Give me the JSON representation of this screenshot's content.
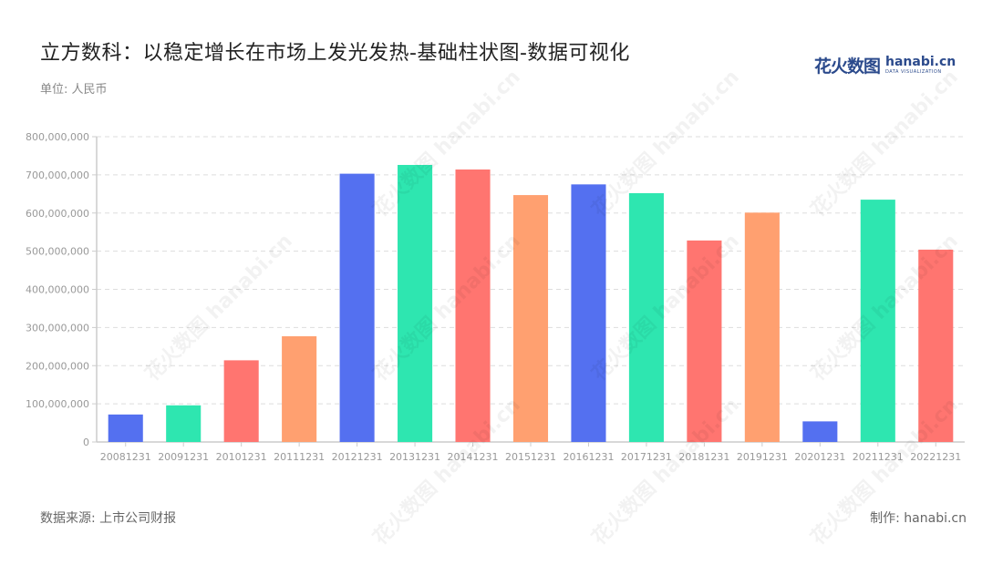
{
  "header": {
    "title": "立方数科：以稳定增长在市场上发光发热-基础柱状图-数据可视化",
    "unit": "单位: 人民币"
  },
  "logo": {
    "cn": "花火数图",
    "en": "hanabi.cn",
    "sub": "DATA VISUALIZATION"
  },
  "footer": {
    "source": "数据来源: 上市公司财报",
    "maker": "制作: hanabi.cn"
  },
  "watermark": "花火数图 hanabi.cn",
  "colors": {
    "palette": [
      "#5470f0",
      "#2ee6b0",
      "#ff7570",
      "#ffa070"
    ],
    "grid": "#dddddd",
    "axis": "#cccccc",
    "tick_label": "#999999"
  },
  "chart_data": {
    "type": "bar",
    "title": "立方数科：以稳定增长在市场上发光发热-基础柱状图-数据可视化",
    "xlabel": "",
    "ylabel": "单位: 人民币",
    "categories": [
      "20081231",
      "20091231",
      "20101231",
      "20111231",
      "20121231",
      "20131231",
      "20141231",
      "20151231",
      "20161231",
      "20171231",
      "20181231",
      "20191231",
      "20201231",
      "20211231",
      "20221231"
    ],
    "values": [
      72000000,
      96000000,
      214000000,
      277000000,
      703000000,
      726000000,
      714000000,
      647000000,
      675000000,
      652000000,
      528000000,
      601000000,
      54000000,
      635000000,
      504000000
    ],
    "ylim": [
      0,
      800000000
    ],
    "yticks": [
      "0",
      "100,000,000",
      "200,000,000",
      "300,000,000",
      "400,000,000",
      "500,000,000",
      "600,000,000",
      "700,000,000",
      "800,000,000"
    ],
    "grid": true,
    "legend": null
  }
}
